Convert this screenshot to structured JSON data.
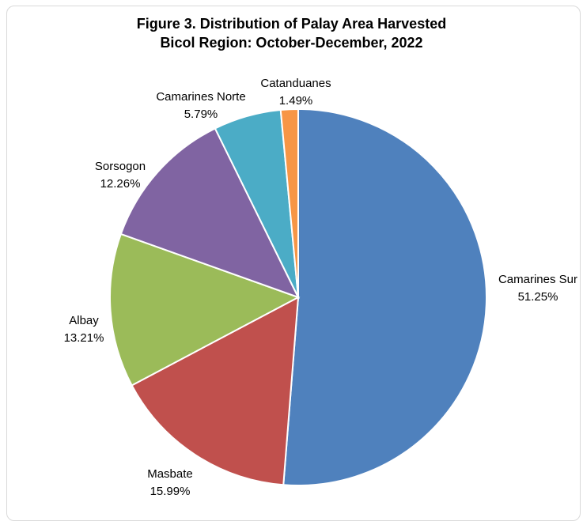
{
  "chart_data": {
    "type": "pie",
    "title": "Figure 3. Distribution of Palay Area Harvested",
    "subtitle": "Bicol Region: October-December, 2022",
    "slices": [
      {
        "label": "Camarines Sur",
        "value": 51.25,
        "value_label": "51.25%",
        "color": "#4f81bd"
      },
      {
        "label": "Masbate",
        "value": 15.99,
        "value_label": "15.99%",
        "color": "#c0504d"
      },
      {
        "label": "Albay",
        "value": 13.21,
        "value_label": "13.21%",
        "color": "#9bbb59"
      },
      {
        "label": "Sorsogon",
        "value": 12.26,
        "value_label": "12.26%",
        "color": "#8064a2"
      },
      {
        "label": "Camarines Norte",
        "value": 5.79,
        "value_label": "5.79%",
        "color": "#4bacc6"
      },
      {
        "label": "Catanduanes",
        "value": 1.49,
        "value_label": "1.49%",
        "color": "#f79646"
      }
    ],
    "start_angle": "12 o'clock",
    "direction": "clockwise"
  }
}
